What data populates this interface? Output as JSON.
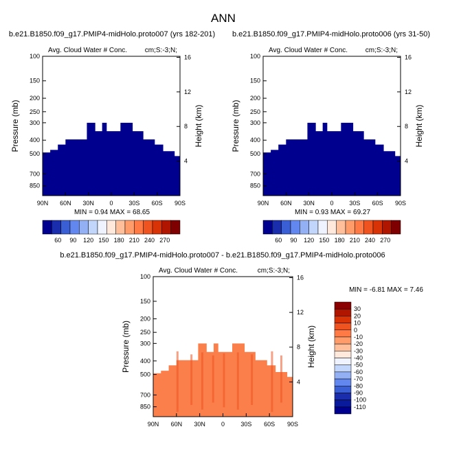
{
  "page_title": "ANN",
  "chart_data": [
    {
      "type": "heatmap",
      "id": "left",
      "title": "b.e21.B1850.f09_g17.PMIP4-midHolo.proto007 (yrs 182-201)",
      "variable": "Avg. Cloud Water # Conc.",
      "units": "cm;S:-3;N;",
      "xlabel": "",
      "ylabel": "Pressure (mb)",
      "y2label": "Height (km)",
      "xticks": [
        "90N",
        "60N",
        "30N",
        "0",
        "30S",
        "60S",
        "90S"
      ],
      "yticks": [
        100,
        150,
        200,
        250,
        300,
        400,
        500,
        700,
        850
      ],
      "y2ticks": [
        16,
        12,
        8,
        4
      ],
      "stats": "MIN =   0.94   MAX =  68.65",
      "fill": "#00008f",
      "colorbar": {
        "labels": [
          "60",
          "90",
          "120",
          "150",
          "180",
          "210",
          "240",
          "270"
        ],
        "colors": [
          "#00008f",
          "#1a2dad",
          "#3a5fd4",
          "#6287ee",
          "#93b0f5",
          "#c2d5fb",
          "#eef3ff",
          "#ffe8dc",
          "#ffbf9b",
          "#ff9c6a",
          "#ff7a45",
          "#ef5420",
          "#d83207",
          "#b01500",
          "#7f0000"
        ]
      }
    },
    {
      "type": "heatmap",
      "id": "right",
      "title": "b.e21.B1850.f09_g17.PMIP4-midHolo.proto006 (yrs 31-50)",
      "variable": "Avg. Cloud Water # Conc.",
      "units": "cm;S:-3;N;",
      "xlabel": "",
      "ylabel": "Pressure (mb)",
      "y2label": "Height (km)",
      "xticks": [
        "90N",
        "60N",
        "30N",
        "0",
        "30S",
        "60S",
        "90S"
      ],
      "yticks": [
        100,
        150,
        200,
        250,
        300,
        400,
        500,
        700,
        850
      ],
      "y2ticks": [
        16,
        12,
        8,
        4
      ],
      "stats": "MIN =   0.93   MAX =  69.27",
      "fill": "#00008f",
      "colorbar": {
        "labels": [
          "60",
          "90",
          "120",
          "150",
          "180",
          "210",
          "240",
          "270"
        ],
        "colors": [
          "#00008f",
          "#1a2dad",
          "#3a5fd4",
          "#6287ee",
          "#93b0f5",
          "#c2d5fb",
          "#eef3ff",
          "#ffe8dc",
          "#ffbf9b",
          "#ff9c6a",
          "#ff7a45",
          "#ef5420",
          "#d83207",
          "#b01500",
          "#7f0000"
        ]
      }
    },
    {
      "type": "heatmap",
      "id": "diff",
      "title": "b.e21.B1850.f09_g17.PMIP4-midHolo.proto007 - b.e21.B1850.f09_g17.PMIP4-midHolo.proto006",
      "variable": "Avg. Cloud Water # Conc.",
      "units": "cm;S:-3;N;",
      "xlabel": "",
      "ylabel": "Pressure (mb)",
      "y2label": "Height (km)",
      "xticks": [
        "90N",
        "60N",
        "30N",
        "0",
        "30S",
        "60S",
        "90S"
      ],
      "yticks": [
        100,
        150,
        200,
        250,
        300,
        400,
        500,
        700,
        850
      ],
      "y2ticks": [
        16,
        12,
        8,
        4
      ],
      "stats": "MIN =  -6.81   MAX =   7.46",
      "fill": "#fb7f4b",
      "colorbar": {
        "labels": [
          "30",
          "20",
          "10",
          "0",
          "-10",
          "-20",
          "-30",
          "-40",
          "-50",
          "-60",
          "-70",
          "-80",
          "-90",
          "-100",
          "-110"
        ],
        "colors": [
          "#8b0000",
          "#b01500",
          "#d83207",
          "#ef5420",
          "#ff7a45",
          "#ff9c6a",
          "#ffbf9b",
          "#ffe8dc",
          "#eef3ff",
          "#c2d5fb",
          "#93b0f5",
          "#6287ee",
          "#3a5fd4",
          "#1a2dad",
          "#0a1a9c",
          "#00008f"
        ]
      }
    }
  ]
}
